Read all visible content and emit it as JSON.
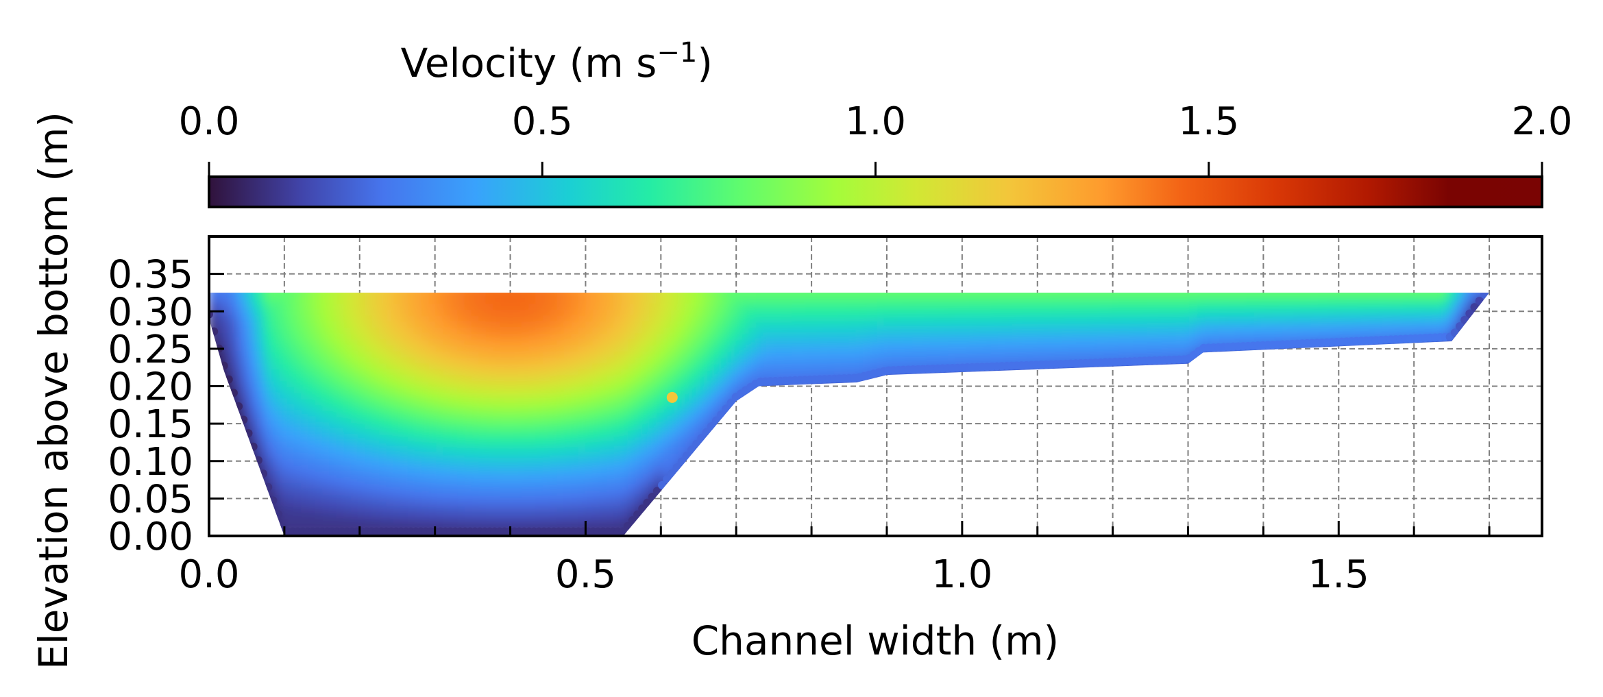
{
  "chart_data": {
    "type": "scatter",
    "title": "",
    "xlabel": "Channel width (m)",
    "ylabel": "Elevation above bottom (m)",
    "xlim": [
      0.0,
      1.77
    ],
    "ylim": [
      0.0,
      0.4
    ],
    "xticks": [
      "0.0",
      "0.5",
      "1.0",
      "1.5"
    ],
    "yticks": [
      "0.00",
      "0.05",
      "0.10",
      "0.15",
      "0.20",
      "0.25",
      "0.30",
      "0.35"
    ],
    "grid": true,
    "colorbar": {
      "label": "Velocity (m s",
      "label_exponent": "−1",
      "label_close": ")",
      "range": [
        0.0,
        2.0
      ],
      "ticks": [
        "0.0",
        "0.5",
        "1.0",
        "1.5",
        "2.0"
      ],
      "colormap": "turbo",
      "location": "top"
    },
    "cross_section": {
      "water_surface": 0.325,
      "bed_profile": [
        [
          0.0,
          0.29
        ],
        [
          0.02,
          0.22
        ],
        [
          0.1,
          0.0
        ],
        [
          0.55,
          0.0
        ],
        [
          0.7,
          0.18
        ],
        [
          0.73,
          0.2
        ],
        [
          0.86,
          0.205
        ],
        [
          0.9,
          0.215
        ],
        [
          1.3,
          0.23
        ],
        [
          1.32,
          0.245
        ],
        [
          1.65,
          0.26
        ],
        [
          1.7,
          0.325
        ]
      ],
      "main_channel_core": {
        "x_center": 0.4,
        "y_center": 0.28,
        "peak_velocity": 1.5
      },
      "floodplain_velocity": {
        "near_surface": 0.8,
        "near_bed": 0.3
      },
      "outlier_point": {
        "x": 0.615,
        "y": 0.185,
        "velocity": 1.2
      }
    }
  }
}
